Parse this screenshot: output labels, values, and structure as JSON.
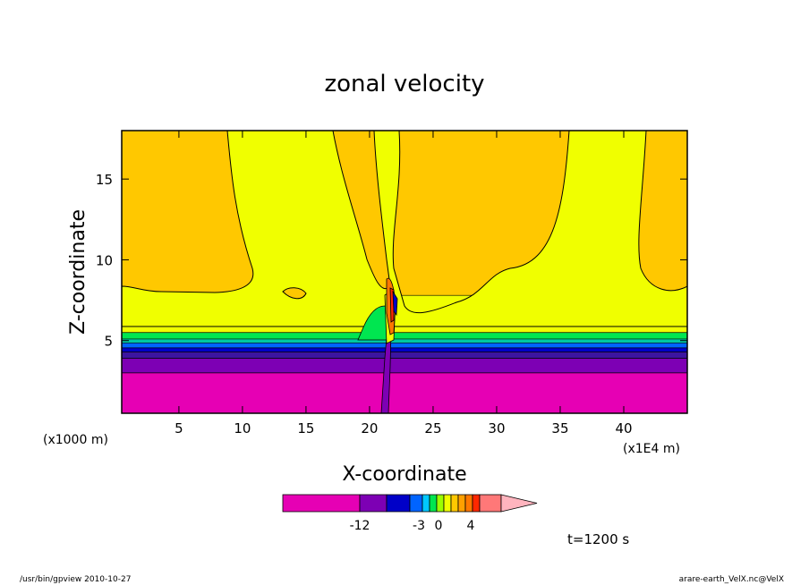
{
  "chart_data": {
    "type": "heatmap",
    "title": "zonal velocity",
    "xlabel": "X-coordinate",
    "ylabel": "Z-coordinate",
    "x_unit": "(x1E4 m)",
    "y_unit": "(x1000 m)",
    "x_range": [
      0.5,
      45
    ],
    "y_range": [
      0.5,
      18
    ],
    "x_ticks": [
      5,
      10,
      15,
      20,
      25,
      30,
      35,
      40
    ],
    "y_ticks": [
      5,
      10,
      15
    ],
    "x_tick_labels": [
      "5",
      "10",
      "15",
      "20",
      "25",
      "30",
      "35",
      "40"
    ],
    "y_tick_labels": [
      "5",
      "10",
      "15"
    ],
    "layers": [
      {
        "name": "magenta",
        "color": "#e600b4",
        "z_top": 3.0
      },
      {
        "name": "purple",
        "color": "#7d00b4",
        "z_top": 3.9
      },
      {
        "name": "indigo",
        "color": "#3c14a0",
        "z_top": 4.3
      },
      {
        "name": "navy",
        "color": "#0000c8",
        "z_top": 4.55
      },
      {
        "name": "blue",
        "color": "#0064ff",
        "z_top": 4.85
      },
      {
        "name": "cyan-green",
        "color": "#00c8a0",
        "z_top": 5.1
      },
      {
        "name": "green",
        "color": "#00e650",
        "z_top": 5.5
      },
      {
        "name": "yellow",
        "color": "#f0ff00",
        "z_top": 7.8
      },
      {
        "name": "orange",
        "color": "#ffc800",
        "z_top": 18
      }
    ],
    "colorbar": {
      "colors": [
        "#e600b4",
        "#7d00b4",
        "#0000c8",
        "#0064ff",
        "#00c8ff",
        "#00e650",
        "#9bff00",
        "#f0ff00",
        "#ffc800",
        "#ffa000",
        "#ff7800",
        "#ff2800",
        "#ff7878",
        "#ffb4be"
      ],
      "labels": [
        "-12",
        "-3",
        "0",
        "4"
      ]
    }
  },
  "annotations": {
    "time": "t=1200 s",
    "footer_left": "/usr/bin/gpview   2010-10-27",
    "footer_right": "arare-earth_VelX.nc@VelX"
  }
}
